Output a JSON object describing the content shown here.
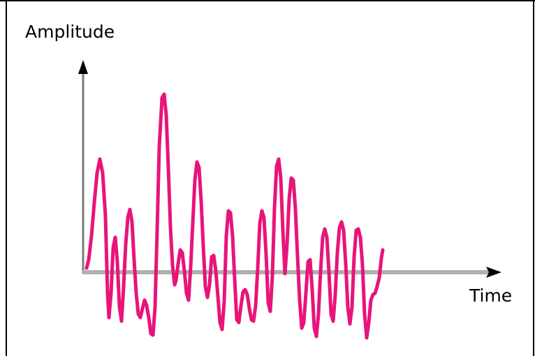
{
  "diagram": {
    "y_axis_label": "Amplitude",
    "x_axis_label": "Time",
    "waveform_color": "#e8147a",
    "axis_x_color": "#b0b0b0",
    "axis_y_color": "#7a7a7a",
    "border_color": "#000000"
  }
}
